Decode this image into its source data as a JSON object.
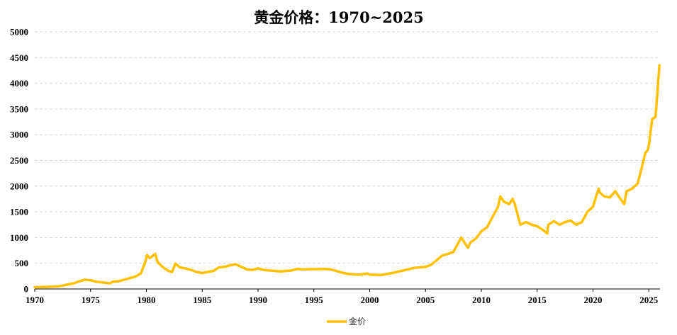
{
  "chart_data": {
    "type": "line",
    "title": "黄金价格：1970~2025",
    "xlabel": "",
    "ylabel": "",
    "xlim": [
      1970,
      2026
    ],
    "ylim": [
      0,
      5000
    ],
    "x_ticks": [
      "1970",
      "1975",
      "1980",
      "1985",
      "1990",
      "1995",
      "2000",
      "2005",
      "2010",
      "2015",
      "2020",
      "2025"
    ],
    "y_ticks": [
      "0",
      "500",
      "1000",
      "1500",
      "2000",
      "2500",
      "3000",
      "3500",
      "4000",
      "4500",
      "5000"
    ],
    "grid": "horizontal-dashed",
    "legend": "bottom-center",
    "colors": {
      "series": "#FFC000",
      "grid": "#d9d9d9"
    },
    "series": [
      {
        "name": "金价",
        "x": [
          1970,
          1971,
          1972,
          1972.5,
          1973,
          1973.5,
          1974,
          1974.5,
          1975,
          1975.5,
          1976,
          1976.7,
          1977,
          1977.5,
          1978,
          1978.5,
          1979,
          1979.5,
          1979.9,
          1980.05,
          1980.3,
          1980.6,
          1980.8,
          1981,
          1981.5,
          1982,
          1982.3,
          1982.6,
          1983,
          1983.5,
          1984,
          1984.5,
          1985,
          1985.5,
          1986,
          1986.5,
          1987,
          1987.5,
          1988,
          1988.5,
          1989,
          1989.5,
          1990,
          1990.5,
          1991,
          1992,
          1993,
          1993.5,
          1994,
          1995,
          1996,
          1996.5,
          1997,
          1997.5,
          1998,
          1999,
          1999.8,
          2000,
          2001,
          2002,
          2003,
          2004,
          2005,
          2005.5,
          2006,
          2006.5,
          2007,
          2007.5,
          2008,
          2008.2,
          2008.8,
          2009,
          2009.5,
          2010,
          2010.5,
          2011,
          2011.5,
          2011.7,
          2012,
          2012.5,
          2012.8,
          2013,
          2013.3,
          2013.5,
          2014,
          2014.5,
          2015,
          2015.5,
          2015.9,
          2016,
          2016.5,
          2017,
          2017.5,
          2018,
          2018.5,
          2019,
          2019.5,
          2020,
          2020.5,
          2020.6,
          2021,
          2021.5,
          2022,
          2022.3,
          2022.8,
          2023,
          2023.5,
          2024,
          2024.3,
          2024.7,
          2024.9,
          2025,
          2025.3,
          2025.6,
          2025.8,
          2025.95
        ],
        "values": [
          35,
          40,
          50,
          65,
          90,
          110,
          150,
          180,
          170,
          140,
          130,
          110,
          140,
          150,
          180,
          210,
          240,
          300,
          520,
          660,
          600,
          650,
          680,
          520,
          420,
          350,
          330,
          490,
          420,
          400,
          370,
          330,
          310,
          330,
          350,
          420,
          430,
          460,
          480,
          430,
          380,
          370,
          400,
          370,
          360,
          340,
          360,
          390,
          380,
          385,
          390,
          380,
          350,
          320,
          295,
          280,
          300,
          280,
          270,
          310,
          360,
          410,
          430,
          470,
          560,
          650,
          680,
          720,
          920,
          1000,
          800,
          900,
          980,
          1120,
          1200,
          1400,
          1600,
          1800,
          1700,
          1650,
          1750,
          1650,
          1400,
          1250,
          1300,
          1250,
          1220,
          1150,
          1080,
          1250,
          1320,
          1250,
          1300,
          1330,
          1250,
          1300,
          1500,
          1600,
          1950,
          1880,
          1800,
          1780,
          1900,
          1800,
          1650,
          1900,
          1950,
          2050,
          2300,
          2650,
          2700,
          2800,
          3300,
          3350,
          3900,
          4350
        ]
      }
    ]
  }
}
